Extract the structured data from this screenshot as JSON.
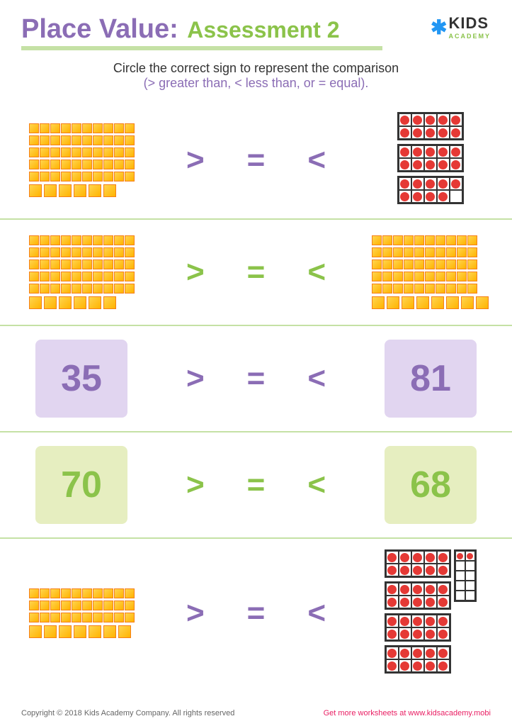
{
  "header": {
    "title_main": "Place Value:",
    "title_sub": "Assessment 2",
    "logo_text": "KIDS",
    "logo_sub": "ACADEMY"
  },
  "instructions": {
    "line1": "Circle the correct sign to represent the comparison",
    "line2": "(> greater than, < less than, or = equal)."
  },
  "signs": {
    "gt": ">",
    "eq": "=",
    "lt": "<"
  },
  "row1": {
    "left_tens": 5,
    "left_ones": 6,
    "right_frames": [
      10,
      10,
      9
    ],
    "sign_colors": [
      "purple",
      "purple",
      "purple"
    ]
  },
  "row2": {
    "left_tens": 5,
    "left_ones": 6,
    "right_tens": 5,
    "right_ones": 8,
    "sign_colors": [
      "green",
      "green",
      "green"
    ]
  },
  "row3": {
    "left_num": "35",
    "right_num": "81",
    "box_color": "purple",
    "sign_colors": [
      "purple",
      "purple",
      "purple"
    ]
  },
  "row4": {
    "left_num": "70",
    "right_num": "68",
    "box_color": "green",
    "sign_colors": [
      "green",
      "green",
      "green"
    ]
  },
  "row5": {
    "left_tens": 3,
    "left_ones": 7,
    "right_frames_a": [
      10,
      10,
      10,
      10
    ],
    "right_frames_b_filled": 2,
    "sign_colors": [
      "purple",
      "purple",
      "purple"
    ]
  },
  "footer": {
    "copyright": "Copyright © 2018 Kids Academy Company. All rights reserved",
    "getmore": "Get more worksheets at www.kidsacademy.mobi"
  },
  "colors": {
    "purple": "#8b6db5",
    "green": "#8bc34a",
    "cube_fill": "#ffd54f",
    "cube_border": "#f57f17",
    "dot": "#e53935",
    "underline": "#c5e1a5"
  }
}
